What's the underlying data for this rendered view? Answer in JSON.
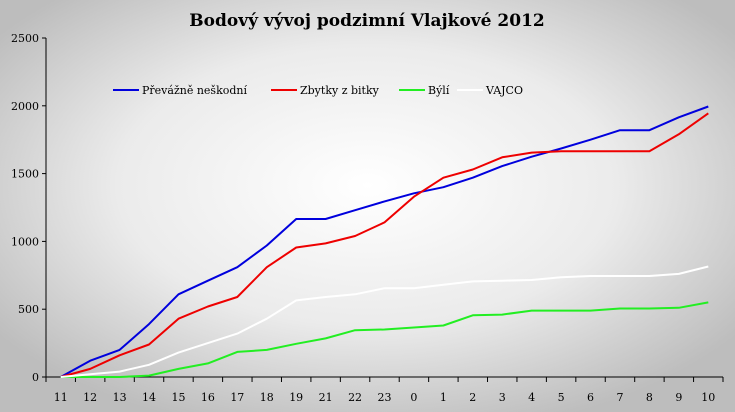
{
  "chart_data": {
    "type": "line",
    "title": "Bodový vývoj podzimní Vlajkové 2012",
    "xlabel": "",
    "ylabel": "",
    "categories": [
      "11",
      "12",
      "13",
      "14",
      "15",
      "16",
      "17",
      "18",
      "19",
      "21",
      "22",
      "23",
      "0",
      "1",
      "2",
      "3",
      "4",
      "5",
      "6",
      "7",
      "8",
      "9",
      "10"
    ],
    "ylim": [
      0,
      2500
    ],
    "yticks": [
      0,
      500,
      1000,
      1500,
      2000,
      2500
    ],
    "grid": false,
    "legend_position": "top",
    "series": [
      {
        "name": "Převážně neškodní",
        "color": "#0000dd",
        "values": [
          0,
          120,
          200,
          390,
          610,
          710,
          810,
          970,
          1165,
          1165,
          1230,
          1295,
          1355,
          1400,
          1470,
          1555,
          1625,
          1685,
          1750,
          1820,
          1820,
          1915,
          1995
        ]
      },
      {
        "name": "Zbytky z bitky",
        "color": "#ee0000",
        "values": [
          0,
          60,
          160,
          240,
          430,
          520,
          590,
          810,
          955,
          985,
          1040,
          1140,
          1330,
          1470,
          1530,
          1620,
          1655,
          1665,
          1665,
          1665,
          1665,
          1790,
          1945
        ]
      },
      {
        "name": "Býlí",
        "color": "#22ee22",
        "values": [
          0,
          0,
          0,
          10,
          60,
          100,
          185,
          200,
          245,
          285,
          345,
          350,
          365,
          380,
          455,
          460,
          490,
          490,
          490,
          505,
          505,
          510,
          550
        ]
      },
      {
        "name": "VAJCO",
        "color": "#ffffff",
        "values": [
          0,
          20,
          40,
          90,
          180,
          250,
          320,
          430,
          565,
          590,
          610,
          655,
          655,
          680,
          705,
          710,
          715,
          735,
          745,
          745,
          745,
          760,
          815
        ]
      }
    ]
  }
}
